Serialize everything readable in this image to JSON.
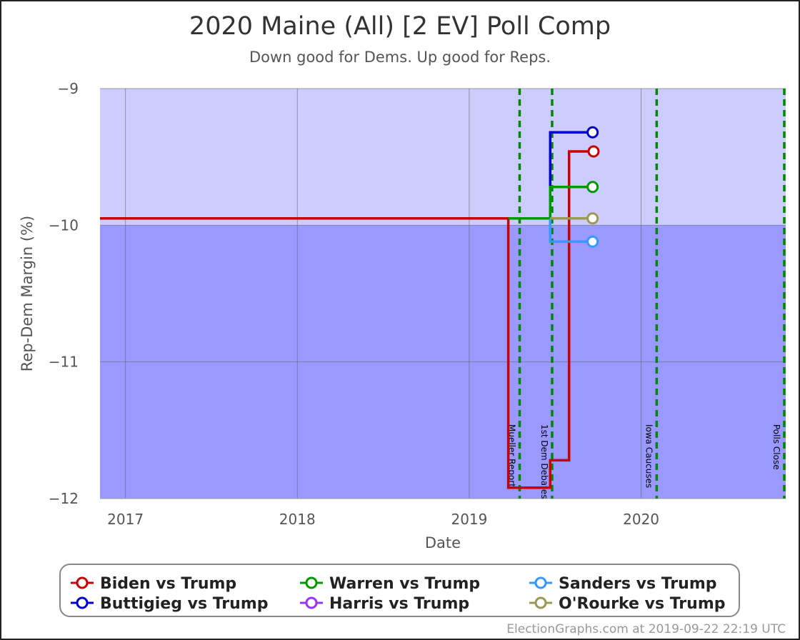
{
  "chart_data": {
    "type": "line",
    "title": "2020 Maine (All) [2 EV] Poll Comp",
    "subtitle": "Down good for Dems. Up good for Reps.",
    "xlabel": "Date",
    "ylabel": "Rep-Dem Margin (%)",
    "xlim": [
      "2016-11-08",
      "2020-11-03"
    ],
    "ylim": [
      -12,
      -9
    ],
    "x_ticks": [
      {
        "date": "2017-01-01",
        "label": "2017"
      },
      {
        "date": "2018-01-01",
        "label": "2018"
      },
      {
        "date": "2019-01-01",
        "label": "2019"
      },
      {
        "date": "2020-01-01",
        "label": "2020"
      }
    ],
    "y_ticks": [
      {
        "value": -9,
        "label": "−9"
      },
      {
        "value": -10,
        "label": "−10"
      },
      {
        "value": -11,
        "label": "−11"
      },
      {
        "value": -12,
        "label": "−12"
      }
    ],
    "background_bands": [
      {
        "from": -10,
        "to": -9,
        "color": "#ccccff"
      },
      {
        "from": -12,
        "to": -10,
        "color": "#9999ff"
      }
    ],
    "grid": true,
    "events": [
      {
        "date": "2019-04-18",
        "label": "Mueller Report"
      },
      {
        "date": "2019-06-26",
        "label": "1st Dem Debates"
      },
      {
        "date": "2020-02-03",
        "label": "Iowa Caucuses"
      },
      {
        "date": "2020-11-03",
        "label": "Polls Close"
      }
    ],
    "series": [
      {
        "name": "Biden vs Trump",
        "color": "#cc0000",
        "points": [
          {
            "x": "2016-11-08",
            "y": -9.95
          },
          {
            "x": "2019-03-25",
            "y": -9.95
          },
          {
            "x": "2019-03-25",
            "y": -11.92
          },
          {
            "x": "2019-06-22",
            "y": -11.92
          },
          {
            "x": "2019-06-22",
            "y": -11.72
          },
          {
            "x": "2019-08-01",
            "y": -11.72
          },
          {
            "x": "2019-08-01",
            "y": -9.46
          },
          {
            "x": "2019-09-22",
            "y": -9.46
          }
        ]
      },
      {
        "name": "Buttigieg vs Trump",
        "color": "#0000cc",
        "points": [
          {
            "x": "2019-06-22",
            "y": -9.72
          },
          {
            "x": "2019-06-22",
            "y": -9.32
          },
          {
            "x": "2019-09-20",
            "y": -9.32
          }
        ]
      },
      {
        "name": "Warren vs Trump",
        "color": "#009900",
        "points": [
          {
            "x": "2019-03-25",
            "y": -9.95
          },
          {
            "x": "2019-06-22",
            "y": -9.95
          },
          {
            "x": "2019-06-22",
            "y": -9.72
          },
          {
            "x": "2019-09-20",
            "y": -9.72
          }
        ]
      },
      {
        "name": "Harris vs Trump",
        "color": "#9933ff",
        "points": []
      },
      {
        "name": "Sanders vs Trump",
        "color": "#3399ff",
        "points": [
          {
            "x": "2019-06-22",
            "y": -9.95
          },
          {
            "x": "2019-06-22",
            "y": -10.12
          },
          {
            "x": "2019-09-20",
            "y": -10.12
          }
        ]
      },
      {
        "name": "O'Rourke vs Trump",
        "color": "#999955",
        "points": [
          {
            "x": "2019-06-22",
            "y": -9.95
          },
          {
            "x": "2019-09-20",
            "y": -9.95
          }
        ]
      }
    ],
    "legend_position": "bottom"
  },
  "footer": "ElectionGraphs.com at 2019-09-22 22:19 UTC"
}
